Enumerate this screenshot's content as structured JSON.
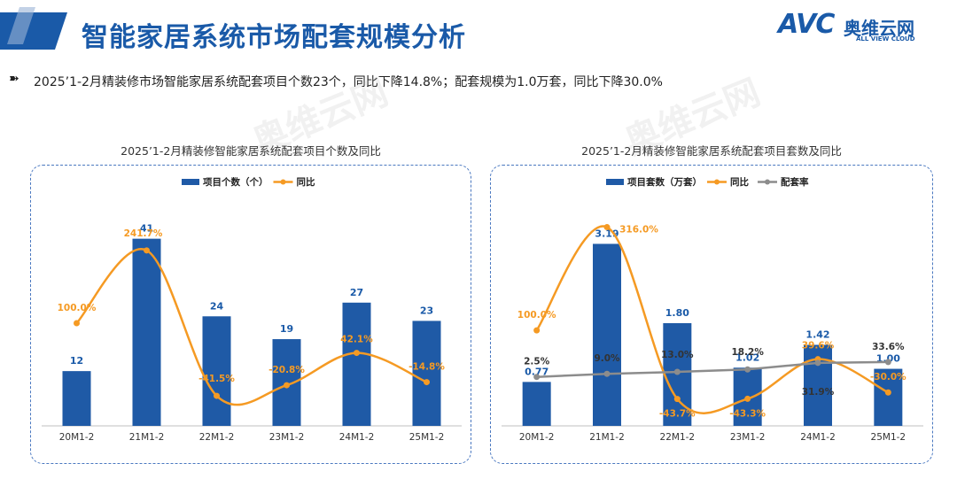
{
  "header": {
    "title": "智能家居系统市场配套规模分析",
    "logo_word": "AVC",
    "logo_cn": "奥维云网",
    "logo_en": "ALL VIEW CLOUD"
  },
  "summary": {
    "bullet": "➽",
    "text": "2025’1-2月精装修市场智能家居系统配套项目个数23个，同比下降14.8%；配套规模为1.0万套，同比下降30.0%"
  },
  "colors": {
    "bar": "#1f5aa6",
    "line_yoy": "#f59a23",
    "line_rate": "#8c8c8c",
    "brand": "#1a5aa8"
  },
  "chart_data": [
    {
      "type": "bar",
      "title": "2025’1-2月精装修智能家居系统配套项目个数及同比",
      "categories": [
        "20M1-2",
        "21M1-2",
        "22M1-2",
        "23M1-2",
        "24M1-2",
        "25M1-2"
      ],
      "series": [
        {
          "name": "项目个数（个）",
          "kind": "bar",
          "values": [
            12,
            41,
            24,
            19,
            27,
            23
          ],
          "labels": [
            "12",
            "41",
            "24",
            "19",
            "27",
            "23"
          ]
        },
        {
          "name": "同比",
          "kind": "line",
          "values": [
            100.0,
            241.7,
            -41.5,
            -20.8,
            42.1,
            -14.8
          ],
          "labels": [
            "100.0%",
            "241.7%",
            "-41.5%",
            "-20.8%",
            "42.1%",
            "-14.8%"
          ]
        }
      ],
      "ylim": [
        0,
        45
      ],
      "y2lim": [
        -100,
        300
      ],
      "legend": "top-left"
    },
    {
      "type": "bar",
      "title": "2025’1-2月精装修智能家居系统配套项目套数及同比",
      "categories": [
        "20M1-2",
        "21M1-2",
        "22M1-2",
        "23M1-2",
        "24M1-2",
        "25M1-2"
      ],
      "series": [
        {
          "name": "项目套数（万套）",
          "kind": "bar",
          "values": [
            0.77,
            3.19,
            1.8,
            1.02,
            1.42,
            1.0
          ],
          "labels": [
            "0.77",
            "3.19",
            "1.80",
            "1.02",
            "1.42",
            "1.00"
          ]
        },
        {
          "name": "同比",
          "kind": "line",
          "values": [
            100.0,
            316.0,
            -43.7,
            -43.3,
            39.6,
            -30.0
          ],
          "labels": [
            "100.0%",
            "316.0%",
            "-43.7%",
            "-43.3%",
            "39.6%",
            "-30.0%"
          ]
        },
        {
          "name": "配套率",
          "kind": "line",
          "values": [
            2.5,
            9.0,
            13.0,
            18.2,
            31.9,
            33.6
          ],
          "labels": [
            "2.5%",
            "9.0%",
            "13.0%",
            "18.2%",
            "31.9%",
            "33.6%"
          ]
        }
      ],
      "ylim": [
        0,
        3.6
      ],
      "y2lim": [
        -100,
        330
      ],
      "legend": "top-left"
    }
  ]
}
